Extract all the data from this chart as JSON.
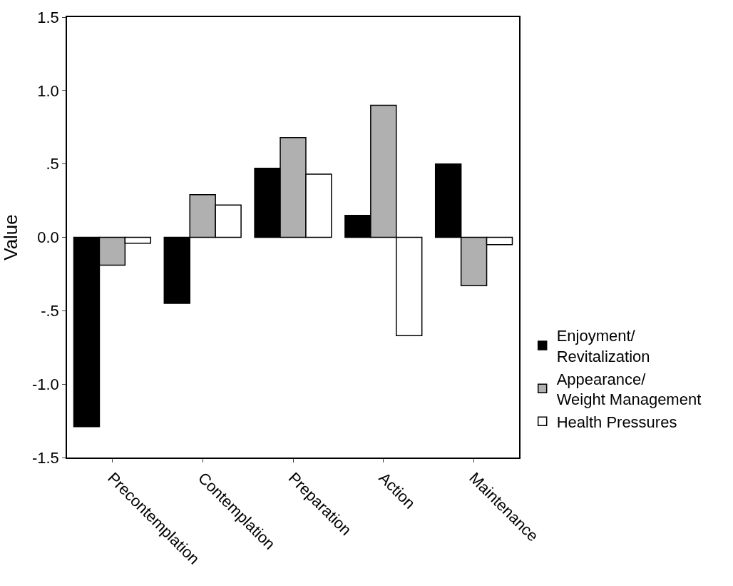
{
  "chart_data": {
    "type": "bar",
    "ylabel": "Value",
    "categories": [
      "Precontemplation",
      "Contemplation",
      "Preparation",
      "Action",
      "Maintenance"
    ],
    "series": [
      {
        "name": "Enjoyment/\nRevitalization",
        "color": "#000000",
        "values": [
          -1.29,
          -0.45,
          0.47,
          0.15,
          0.5
        ]
      },
      {
        "name": "Appearance/\nWeight Management",
        "color": "#b0b0b0",
        "values": [
          -0.19,
          0.29,
          0.68,
          0.9,
          -0.33
        ]
      },
      {
        "name": "Health Pressures",
        "color": "#ffffff",
        "values": [
          -0.04,
          0.22,
          0.43,
          -0.67,
          -0.05
        ]
      }
    ],
    "ylim": [
      -1.5,
      1.5
    ],
    "yticks": [
      1.5,
      {
        "value": 1.0,
        "label": "1.0"
      },
      {
        "value": 0.5,
        "label": ".5"
      },
      {
        "value": 0.0,
        "label": "0.0"
      },
      {
        "value": -0.5,
        "label": "-.5"
      },
      {
        "value": -1.0,
        "label": "-1.0"
      },
      -1.5
    ],
    "legend": "right"
  }
}
